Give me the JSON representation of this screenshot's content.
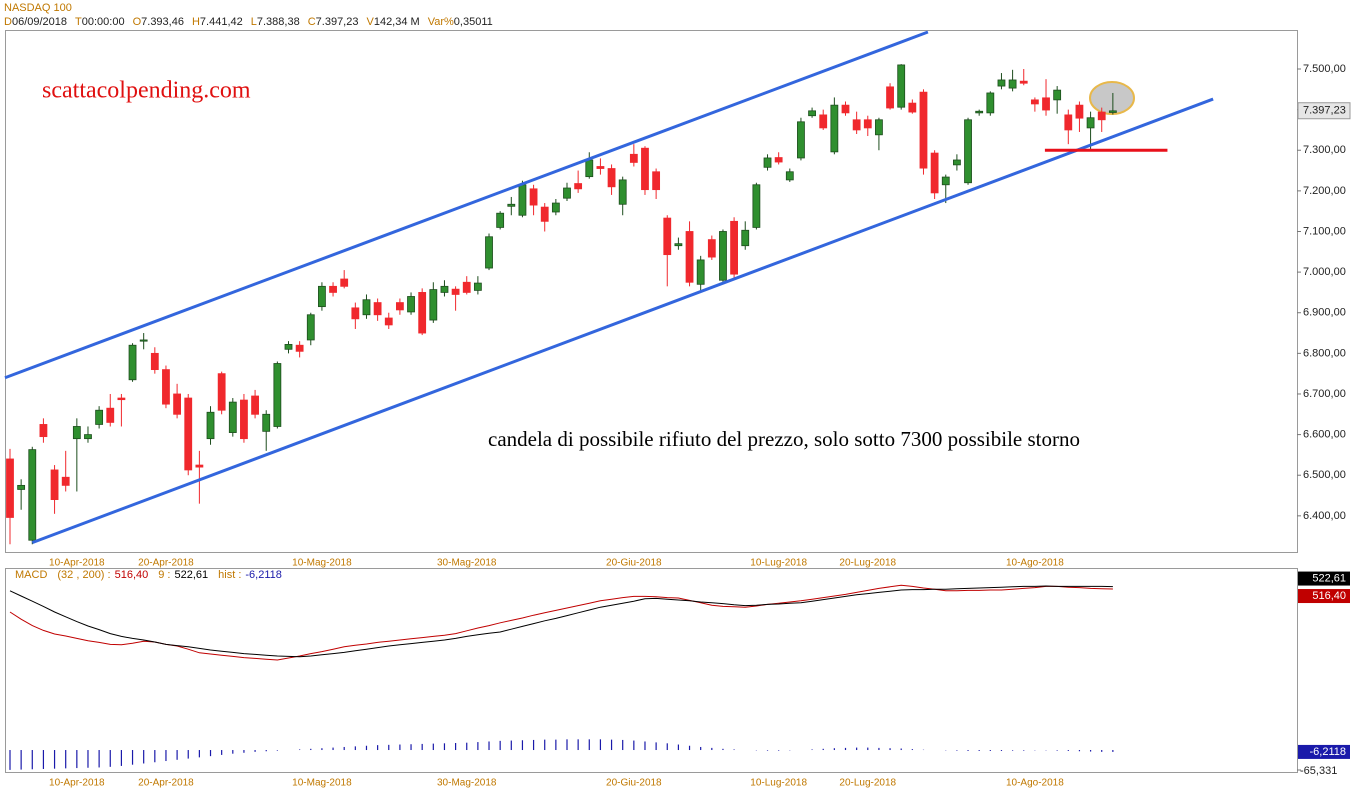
{
  "header": {
    "title": "NASDAQ 100",
    "fields": [
      {
        "key": "D",
        "value": "06/09/2018"
      },
      {
        "key": "T",
        "value": "00:00:00"
      },
      {
        "key": "O",
        "value": "7.393,46"
      },
      {
        "key": "H",
        "value": "7.441,42"
      },
      {
        "key": "L",
        "value": "7.388,38"
      },
      {
        "key": "C",
        "value": "7.397,23"
      },
      {
        "key": "V",
        "value": "142,34 M"
      },
      {
        "key": "Var%",
        "value": "0,35011"
      }
    ]
  },
  "chart_data": [
    {
      "type": "candlestick",
      "categories": [
        null,
        null,
        null,
        null,
        null,
        null,
        "10-Apr-2018",
        null,
        null,
        null,
        null,
        null,
        null,
        null,
        "20-Apr-2018",
        null,
        null,
        null,
        null,
        null,
        null,
        null,
        null,
        null,
        null,
        null,
        null,
        null,
        "10-Mag-2018",
        null,
        null,
        null,
        null,
        null,
        null,
        null,
        null,
        null,
        null,
        null,
        null,
        "30-Mag-2018",
        null,
        null,
        null,
        null,
        null,
        null,
        null,
        null,
        null,
        null,
        null,
        null,
        null,
        null,
        "20-Giu-2018",
        null,
        null,
        null,
        null,
        null,
        null,
        null,
        null,
        null,
        null,
        null,
        null,
        "10-Lug-2018",
        null,
        null,
        null,
        null,
        null,
        null,
        null,
        "20-Lug-2018",
        null,
        null,
        null,
        null,
        null,
        null,
        null,
        null,
        null,
        null,
        null,
        null,
        null,
        null,
        "10-Ago-2018",
        null,
        null,
        null,
        null,
        null,
        null,
        null
      ],
      "open": [
        6540,
        6465,
        6340,
        6625,
        6513,
        6495,
        6590,
        6590,
        6625,
        6665,
        6690,
        6735,
        6830,
        6800,
        6760,
        6700,
        6690,
        6525,
        6590,
        6750,
        6605,
        6685,
        6695,
        6608,
        6620,
        6810,
        6820,
        6833,
        6915,
        6965,
        6983,
        6912,
        6895,
        6925,
        6887,
        6925,
        6902,
        6950,
        6882,
        6950,
        6958,
        6975,
        6955,
        7010,
        7110,
        7162,
        7140,
        7205,
        7160,
        7148,
        7182,
        7218,
        7235,
        7260,
        7255,
        7167,
        7290,
        7305,
        7247,
        7133,
        7065,
        7100,
        6970,
        7080,
        6980,
        7125,
        7065,
        7110,
        7258,
        7282,
        7227,
        7281,
        7385,
        7387,
        7296,
        7411,
        7375,
        7375,
        7338,
        7456,
        7406,
        7416,
        7443,
        7293,
        7215,
        7264,
        7220,
        7392,
        7392,
        7458,
        7453,
        7470,
        7424,
        7429,
        7424,
        7387,
        7411,
        7355,
        7394,
        7393
      ],
      "high": [
        6565,
        6490,
        6570,
        6640,
        6525,
        6560,
        6640,
        6620,
        6670,
        6700,
        6700,
        6825,
        6850,
        6815,
        6770,
        6725,
        6700,
        6560,
        6670,
        6755,
        6690,
        6700,
        6710,
        6660,
        6780,
        6830,
        6830,
        6900,
        6975,
        6975,
        7005,
        6925,
        6945,
        6935,
        6900,
        6935,
        6950,
        6960,
        6975,
        6980,
        6965,
        6990,
        6990,
        7095,
        7150,
        7185,
        7225,
        7215,
        7170,
        7180,
        7220,
        7250,
        7295,
        7280,
        7265,
        7235,
        7315,
        7310,
        7255,
        7140,
        7085,
        7125,
        7040,
        7090,
        7105,
        7135,
        7125,
        7220,
        7290,
        7295,
        7255,
        7380,
        7405,
        7400,
        7430,
        7420,
        7395,
        7385,
        7380,
        7465,
        7512,
        7425,
        7450,
        7300,
        7240,
        7290,
        7380,
        7400,
        7445,
        7490,
        7498,
        7500,
        7430,
        7475,
        7458,
        7400,
        7420,
        7395,
        7405,
        7441
      ],
      "low": [
        6330,
        6415,
        6330,
        6580,
        6405,
        6460,
        6460,
        6580,
        6615,
        6620,
        6620,
        6730,
        6810,
        6750,
        6665,
        6640,
        6500,
        6430,
        6575,
        6650,
        6595,
        6580,
        6640,
        6560,
        6615,
        6800,
        6790,
        6820,
        6905,
        6940,
        6960,
        6860,
        6885,
        6880,
        6860,
        6895,
        6895,
        6845,
        6875,
        6940,
        6905,
        6945,
        6945,
        7005,
        7105,
        7140,
        7135,
        7140,
        7100,
        7140,
        7175,
        7195,
        7230,
        7240,
        7190,
        7140,
        7260,
        7190,
        7180,
        6965,
        7055,
        6965,
        6955,
        7030,
        6975,
        6985,
        7055,
        7105,
        7250,
        7265,
        7222,
        7275,
        7380,
        7350,
        7290,
        7385,
        7340,
        7335,
        7300,
        7400,
        7400,
        7390,
        7240,
        7180,
        7170,
        7250,
        7215,
        7385,
        7385,
        7450,
        7445,
        7460,
        7395,
        7385,
        7390,
        7315,
        7345,
        7300,
        7345,
        7388
      ],
      "close": [
        6396,
        6475,
        6563,
        6595,
        6440,
        6475,
        6620,
        6600,
        6660,
        6630,
        6686,
        6820,
        6833,
        6760,
        6675,
        6650,
        6513,
        6520,
        6655,
        6660,
        6680,
        6590,
        6650,
        6650,
        6775,
        6822,
        6805,
        6895,
        6965,
        6950,
        6965,
        6885,
        6932,
        6895,
        6870,
        6907,
        6940,
        6850,
        6957,
        6965,
        6945,
        6950,
        6973,
        7087,
        7145,
        7167,
        7215,
        7165,
        7125,
        7170,
        7207,
        7205,
        7276,
        7255,
        7210,
        7227,
        7270,
        7203,
        7203,
        7043,
        7070,
        6975,
        7030,
        7037,
        7100,
        6995,
        7103,
        7215,
        7281,
        7271,
        7247,
        7370,
        7397,
        7355,
        7411,
        7392,
        7350,
        7355,
        7375,
        7404,
        7510,
        7394,
        7256,
        7195,
        7234,
        7276,
        7375,
        7396,
        7441,
        7473,
        7473,
        7465,
        7414,
        7399,
        7448,
        7350,
        7379,
        7380,
        7375,
        7397
      ],
      "up_color": "#2f8f2f",
      "down_color": "#f0282d",
      "ylim": [
        6311,
        7596
      ],
      "yticks": [
        {
          "value": 6400,
          "label": "6.400,00"
        },
        {
          "value": 6500,
          "label": "6.500,00"
        },
        {
          "value": 6600,
          "label": "6.600,00"
        },
        {
          "value": 6700,
          "label": "6.700,00"
        },
        {
          "value": 6800,
          "label": "6.800,00"
        },
        {
          "value": 6900,
          "label": "6.900,00"
        },
        {
          "value": 7000,
          "label": "7.000,00"
        },
        {
          "value": 7100,
          "label": "7.100,00"
        },
        {
          "value": 7200,
          "label": "7.200,00"
        },
        {
          "value": 7300,
          "label": "7.300,00"
        },
        {
          "value": 7400,
          "label": "7.400,00"
        },
        {
          "value": 7500,
          "label": "7.500,00"
        }
      ],
      "last_price": {
        "value": 7397.23,
        "label": "7.397,23"
      },
      "trendlines": [
        {
          "x": [
            -0.45,
            82.4
          ],
          "y": [
            6740,
            7591
          ],
          "color": "#3366dd"
        },
        {
          "x": [
            2,
            108
          ],
          "y": [
            6334,
            7426
          ],
          "color": "#3366dd"
        },
        {
          "x": [
            92.9,
            103.9
          ],
          "y": [
            7300,
            7300
          ],
          "color": "#e8101a"
        }
      ],
      "watermark": "scattacolpending.com",
      "annotation": "candela di possibile rifiuto del prezzo, solo sotto 7300 possibile storno"
    },
    {
      "type": "macd",
      "title": "MACD",
      "series": [
        {
          "name": "(32 , 200) :",
          "color": "#c00000",
          "last_label": "516,40",
          "values": [
            459,
            441,
            425,
            413,
            404,
            399,
            393,
            387,
            383,
            378,
            377,
            381,
            386,
            384,
            378,
            374,
            366,
            357,
            354,
            351,
            348,
            345,
            343,
            341,
            339,
            344,
            349,
            355,
            360,
            366,
            372,
            376,
            379,
            383,
            386,
            389,
            392,
            395,
            398,
            401,
            405,
            412,
            419,
            425,
            432,
            438,
            444,
            451,
            457,
            463,
            469,
            475,
            481,
            487,
            491,
            495,
            498,
            498,
            497,
            495,
            494,
            488,
            482,
            476,
            473,
            472,
            471,
            474,
            478,
            481,
            484,
            487,
            491,
            495,
            499,
            503,
            508,
            513,
            518,
            522,
            526,
            523,
            519,
            516,
            512,
            512,
            513,
            513,
            514,
            514,
            516,
            518,
            520,
            523,
            523,
            521,
            520,
            518,
            517,
            516.4
          ]
        },
        {
          "name": "9 :",
          "color": "#000000",
          "last_label": "522,61",
          "values": [
            512,
            499,
            486,
            473,
            459,
            447,
            435,
            424,
            415,
            405,
            398,
            393,
            389,
            384,
            378,
            375,
            372,
            368,
            364,
            361,
            358,
            355,
            353,
            351,
            349,
            348,
            347,
            349,
            352,
            355,
            358,
            362,
            366,
            370,
            374,
            377,
            380,
            383,
            386,
            389,
            393,
            398,
            402,
            406,
            409,
            416,
            423,
            430,
            437,
            443,
            450,
            457,
            464,
            471,
            476,
            481,
            486,
            492,
            493,
            491,
            489,
            487,
            484,
            482,
            480,
            477,
            475,
            476,
            478,
            479,
            481,
            482,
            486,
            490,
            494,
            498,
            502,
            505,
            508,
            511,
            514,
            515,
            515,
            516,
            516,
            517,
            518,
            519,
            520,
            521,
            522,
            523,
            523,
            524,
            523,
            523,
            523,
            523,
            523,
            522.61
          ]
        }
      ],
      "hist": {
        "name": "hist :",
        "color": "#1a1aaa",
        "last_label": "-6,2118",
        "values": [
          -65,
          -64,
          -63,
          -62,
          -61,
          -60,
          -59,
          -58,
          -57,
          -55,
          -52,
          -48,
          -44,
          -40,
          -36,
          -32,
          -28,
          -24,
          -20,
          -16,
          -12,
          -9,
          -6,
          -4,
          -2,
          0,
          2,
          4,
          6,
          8,
          10,
          12,
          14,
          16,
          17,
          18,
          19,
          20,
          21,
          22,
          23,
          24,
          26,
          28,
          30,
          31,
          32,
          33,
          34,
          34,
          35,
          35,
          35,
          35,
          34,
          33,
          31,
          28,
          25,
          22,
          18,
          14,
          10,
          7,
          4,
          2,
          0,
          -1,
          -2,
          -2,
          -1,
          0,
          2,
          4,
          6,
          7,
          8,
          8,
          7,
          6,
          5,
          3,
          1,
          0,
          -1,
          -2,
          -3,
          -3,
          -3,
          -3,
          -2,
          -2,
          -1,
          -1,
          -2,
          -3,
          -4,
          -5,
          -6,
          -6.2118
        ]
      },
      "ylim": [
        59,
        569
      ],
      "hist_ylim": [
        -65.331,
        530
      ],
      "hist_yticks": [
        {
          "value": -65.331,
          "label": "-65,331"
        }
      ]
    }
  ]
}
